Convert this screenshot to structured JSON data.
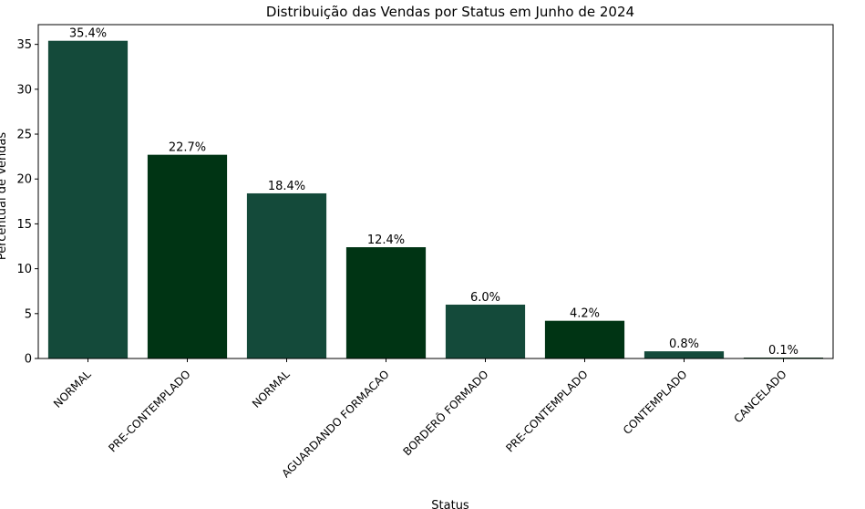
{
  "chart_data": {
    "type": "bar",
    "title": "Distribuição das Vendas por Status em Junho de 2024",
    "xlabel": "Status",
    "ylabel": "Percentual de Vendas",
    "categories": [
      "NORMAL",
      "PRE-CONTEMPLADO",
      "NORMAL",
      "AGUARDANDO FORMACAO",
      "BORDERÔ FORMADO",
      "PRE-CONTEMPLADO",
      "CONTEMPLADO",
      "CANCELADO"
    ],
    "values": [
      35.4,
      22.7,
      18.4,
      12.4,
      6.0,
      4.2,
      0.8,
      0.1
    ],
    "value_labels": [
      "35.4%",
      "22.7%",
      "18.4%",
      "12.4%",
      "6.0%",
      "4.2%",
      "0.8%",
      "0.1%"
    ],
    "bar_colors": [
      "#144a3a",
      "#003414",
      "#144a3a",
      "#003414",
      "#144a3a",
      "#003414",
      "#144a3a",
      "#003414"
    ],
    "yticks": [
      0,
      5,
      10,
      15,
      20,
      25,
      30,
      35
    ],
    "ylim": [
      0,
      37.2
    ],
    "grid": false,
    "legend": "none"
  }
}
